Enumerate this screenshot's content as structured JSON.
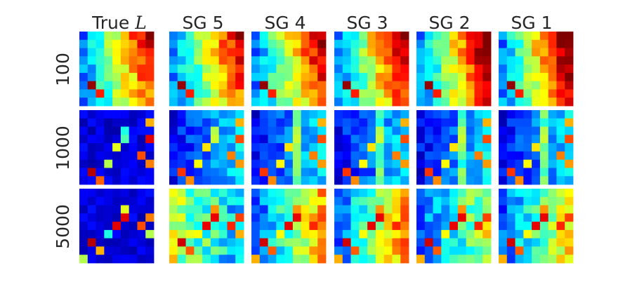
{
  "chart_data": {
    "type": "heatmap",
    "grid_size": [
      9,
      9
    ],
    "colormap": "jet",
    "value_range": [
      0,
      1
    ],
    "columns": [
      {
        "label": "True ",
        "math": "L",
        "key": "true"
      },
      {
        "label": "SG 5",
        "key": "sg5"
      },
      {
        "label": "SG 4",
        "key": "sg4"
      },
      {
        "label": "SG 3",
        "key": "sg3"
      },
      {
        "label": "SG 2",
        "key": "sg2"
      },
      {
        "label": "SG 1",
        "key": "sg1"
      }
    ],
    "rows": [
      {
        "label": "100",
        "key": "r100"
      },
      {
        "label": "1000",
        "key": "r1000"
      },
      {
        "label": "5000",
        "key": "r5000"
      }
    ]
  }
}
